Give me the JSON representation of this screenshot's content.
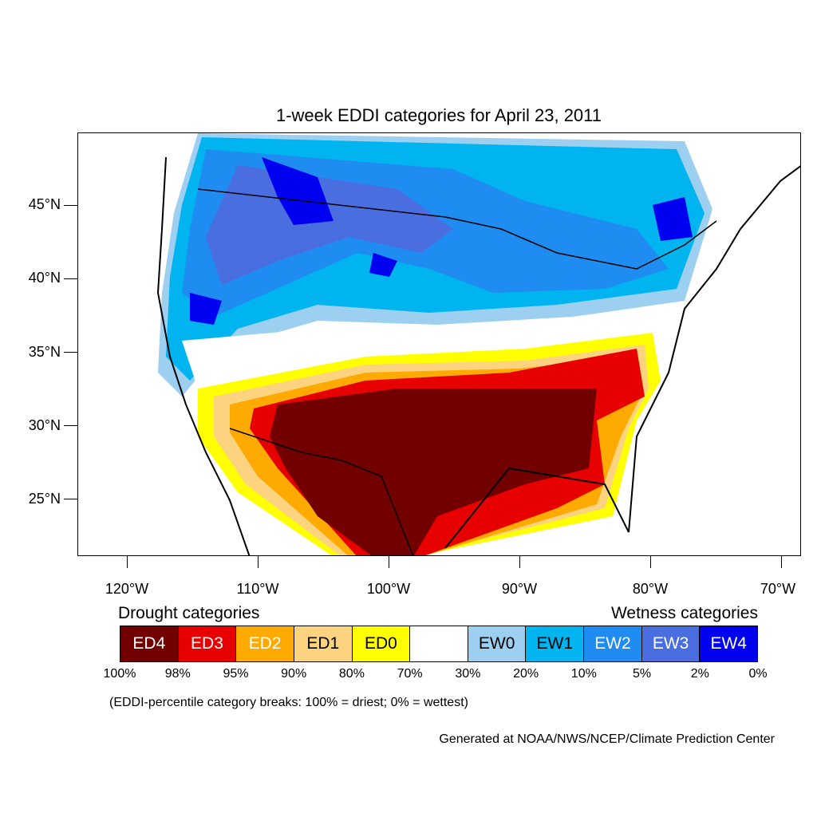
{
  "title": "1-week EDDI categories for April 23, 2011",
  "map": {
    "lat_labels": [
      "45°N",
      "40°N",
      "35°N",
      "30°N",
      "25°N"
    ],
    "lon_labels": [
      "120°W",
      "110°W",
      "100°W",
      "90°W",
      "80°W",
      "70°W"
    ],
    "drought_heading": "Drought categories",
    "wetness_heading": "Wetness categories"
  },
  "legend": {
    "categories": [
      {
        "label": "ED4",
        "color": "#730000",
        "text_color": "#ffffff"
      },
      {
        "label": "ED3",
        "color": "#e60000",
        "text_color": "#ffffff"
      },
      {
        "label": "ED2",
        "color": "#ffaa00",
        "text_color": "#ffffff"
      },
      {
        "label": "ED1",
        "color": "#fcd37f",
        "text_color": "#000000"
      },
      {
        "label": "ED0",
        "color": "#ffff00",
        "text_color": "#000000"
      },
      {
        "label": "",
        "color": "#ffffff",
        "text_color": "#000000"
      },
      {
        "label": "EW0",
        "color": "#9ccff0",
        "text_color": "#000000"
      },
      {
        "label": "EW1",
        "color": "#00b4f0",
        "text_color": "#000000"
      },
      {
        "label": "EW2",
        "color": "#1e8cf0",
        "text_color": "#ffffff"
      },
      {
        "label": "EW3",
        "color": "#4a6ee0",
        "text_color": "#ffffff"
      },
      {
        "label": "EW4",
        "color": "#0000f0",
        "text_color": "#ffffff"
      }
    ],
    "breaks": [
      "100%",
      "98%",
      "95%",
      "90%",
      "80%",
      "70%",
      "30%",
      "20%",
      "10%",
      "5%",
      "2%",
      "0%"
    ]
  },
  "note": "(EDDI-percentile category breaks: 100% = driest; 0% = wettest)",
  "credit": "Generated at NOAA/NWS/NCEP/Climate Prediction Center"
}
